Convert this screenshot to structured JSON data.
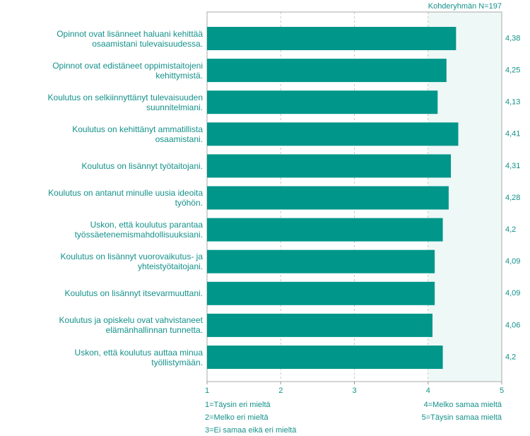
{
  "chart_data": {
    "type": "bar",
    "orientation": "horizontal",
    "note_top": "Kohderyhmän N=197",
    "categories": [
      "Opinnot ovat lisänneet haluani kehittää\nosaamistani tulevaisuudessa.",
      "Opinnot ovat edistäneet oppimistaitojeni\nkehittymistä.",
      "Koulutus on selkiinnyttänyt tulevaisuuden\nsuunnitelmiani.",
      "Koulutus on kehittänyt ammatillista\nosaamistani.",
      "Koulutus on lisännyt työtaitojani.",
      "Koulutus on antanut minulle uusia ideoita\ntyöhön.",
      "Uskon, että koulutus parantaa\ntyössäetenemismahdollisuuksiani.",
      "Koulutus on lisännyt vuorovaikutus- ja\nyhteistyötaitojani.",
      "Koulutus on lisännyt itsevarmuuttani.",
      "Koulutus ja opiskelu ovat vahvistaneet\nelämänhallinnan tunnetta.",
      "Uskon, että koulutus auttaa minua\ntyöllistymään."
    ],
    "values": [
      4.38,
      4.25,
      4.13,
      4.41,
      4.31,
      4.28,
      4.2,
      4.09,
      4.09,
      4.06,
      4.2
    ],
    "value_labels": [
      "4,38",
      "4,25",
      "4,13",
      "4,41",
      "4,31",
      "4,28",
      "4,2",
      "4,09",
      "4,09",
      "4,06",
      "4,2"
    ],
    "color": "#00968a",
    "xlim": [
      1,
      5
    ],
    "xticks": [
      1,
      2,
      3,
      4,
      5
    ],
    "grid": true,
    "shaded_band": [
      4,
      5
    ],
    "scale_legend_left": [
      "1=Täysin eri mieltä",
      "2=Melko eri mieltä",
      "3=Ei samaa eikä eri mieltä"
    ],
    "scale_legend_right": [
      "4=Melko samaa mieltä",
      "5=Täysin samaa mieltä"
    ]
  }
}
